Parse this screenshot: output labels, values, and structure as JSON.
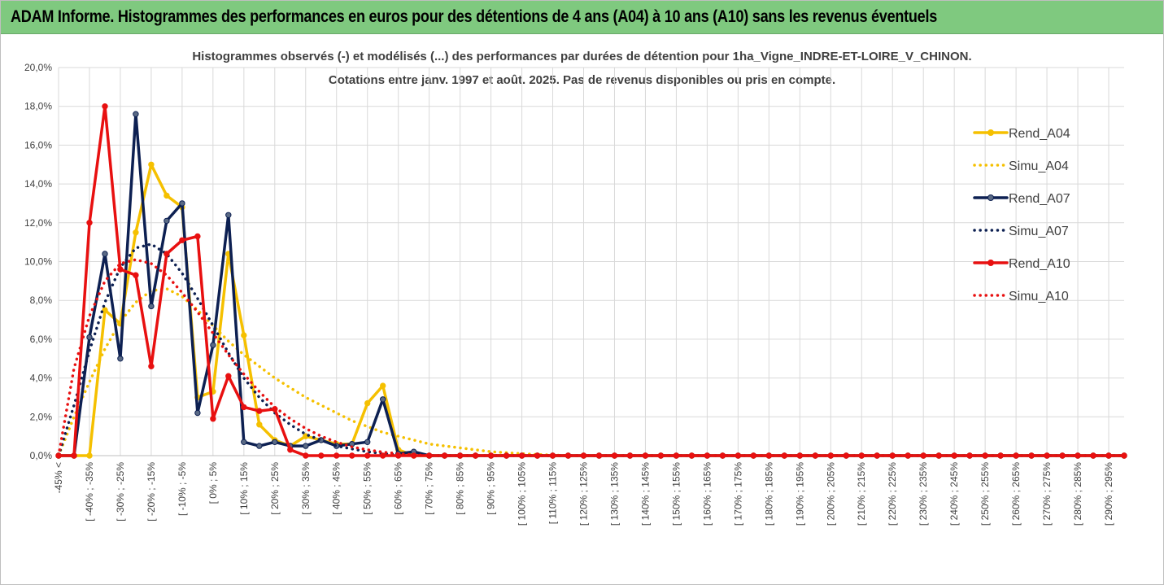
{
  "header": {
    "title": "ADAM Informe. Histogrammes des performances en euros pour des détentions de 4 ans (A04) à 10 ans (A10) sans les revenus éventuels"
  },
  "chart_data": {
    "type": "line",
    "title": "Histogrammes observés (-) et modélisés (...) des performances par durées de détention pour 1ha_Vigne_INDRE-ET-LOIRE_V_CHINON.",
    "subtitle": "Cotations entre janv. 1997 et août. 2025. Pas de revenus disponibles ou pris en compte.",
    "xlabel": "",
    "ylabel": "",
    "ylim": [
      0,
      20
    ],
    "y_ticks": [
      "0,0%",
      "2,0%",
      "4,0%",
      "6,0%",
      "8,0%",
      "10,0%",
      "12,0%",
      "14,0%",
      "16,0%",
      "18,0%",
      "20,0%"
    ],
    "grid": true,
    "legend_position": "right",
    "x_tick_labels": [
      "-45% <",
      "[ -40% ; -35%",
      "[ -30% ; -25%",
      "[ -20% ; -15%",
      "[ -10% ; -5%",
      "[ 0% ; 5%",
      "[ 10% ; 15%",
      "[ 20% ; 25%",
      "[ 30% ; 35%",
      "[ 40% ; 45%",
      "[ 50% ; 55%",
      "[ 60% ; 65%",
      "[ 70% ; 75%",
      "[ 80% ; 85%",
      "[ 90% ; 95%",
      "[ 100% ; 105%",
      "[ 110% ; 115%",
      "[ 120% ; 125%",
      "[ 130% ; 135%",
      "[ 140% ; 145%",
      "[ 150% ; 155%",
      "[ 160% ; 165%",
      "[ 170% ; 175%",
      "[ 180% ; 185%",
      "[ 190% ; 195%",
      "[ 200% ; 205%",
      "[ 210% ; 215%",
      "[ 220% ; 225%",
      "[ 230% ; 235%",
      "[ 240% ; 245%",
      "[ 250% ; 255%",
      "[ 260% ; 265%",
      "[ 270% ; 275%",
      "[ 280% ; 285%",
      "[ 290% ; 295%"
    ],
    "series": [
      {
        "name": "Rend_A04",
        "style": "solid",
        "color": "#f5c000",
        "values": [
          0.0,
          0.0,
          0.0,
          7.5,
          6.8,
          11.5,
          15.0,
          13.4,
          12.8,
          3.0,
          3.3,
          10.4,
          6.2,
          1.6,
          0.8,
          0.5,
          1.0,
          0.8,
          0.6,
          0.6,
          2.7,
          3.6,
          0.3
        ]
      },
      {
        "name": "Simu_A04",
        "style": "dotted",
        "color": "#f5c000",
        "values": [
          0.0,
          2.0,
          3.8,
          5.5,
          6.9,
          7.9,
          8.5,
          8.6,
          8.2,
          7.5,
          6.7,
          5.9,
          5.2,
          4.6,
          4.0,
          3.5,
          3.0,
          2.6,
          2.2,
          1.8,
          1.5,
          1.2,
          1.0,
          0.8,
          0.6,
          0.5,
          0.4,
          0.3,
          0.2,
          0.15,
          0.1,
          0.06,
          0.03
        ]
      },
      {
        "name": "Rend_A07",
        "style": "solid",
        "color": "#0d2052",
        "values": [
          0.0,
          0.0,
          6.1,
          10.4,
          5.0,
          17.6,
          7.7,
          12.1,
          13.0,
          2.2,
          5.7,
          12.4,
          0.7,
          0.5,
          0.7,
          0.5,
          0.5,
          0.8,
          0.5,
          0.6,
          0.7,
          2.9,
          0.1,
          0.2
        ]
      },
      {
        "name": "Simu_A07",
        "style": "dotted",
        "color": "#0d2052",
        "values": [
          0.0,
          2.6,
          5.4,
          7.9,
          9.7,
          10.7,
          10.9,
          10.4,
          9.4,
          8.1,
          6.7,
          5.3,
          4.0,
          3.0,
          2.2,
          1.6,
          1.1,
          0.8,
          0.5,
          0.35,
          0.2,
          0.1,
          0.05,
          0.02
        ]
      },
      {
        "name": "Rend_A10",
        "style": "solid",
        "color": "#e81010",
        "values": [
          0.0,
          0.0,
          12.0,
          18.0,
          9.6,
          9.3,
          4.6,
          10.4,
          11.1,
          11.3,
          1.9,
          4.1,
          2.5,
          2.3,
          2.4,
          0.3,
          0.0
        ]
      },
      {
        "name": "Simu_A10",
        "style": "dotted",
        "color": "#e81010",
        "values": [
          0.0,
          4.5,
          7.2,
          9.0,
          9.9,
          10.1,
          9.9,
          9.3,
          8.4,
          7.4,
          6.3,
          5.2,
          4.2,
          3.3,
          2.5,
          1.9,
          1.4,
          1.0,
          0.7,
          0.45,
          0.3,
          0.18,
          0.1,
          0.04
        ]
      }
    ]
  }
}
